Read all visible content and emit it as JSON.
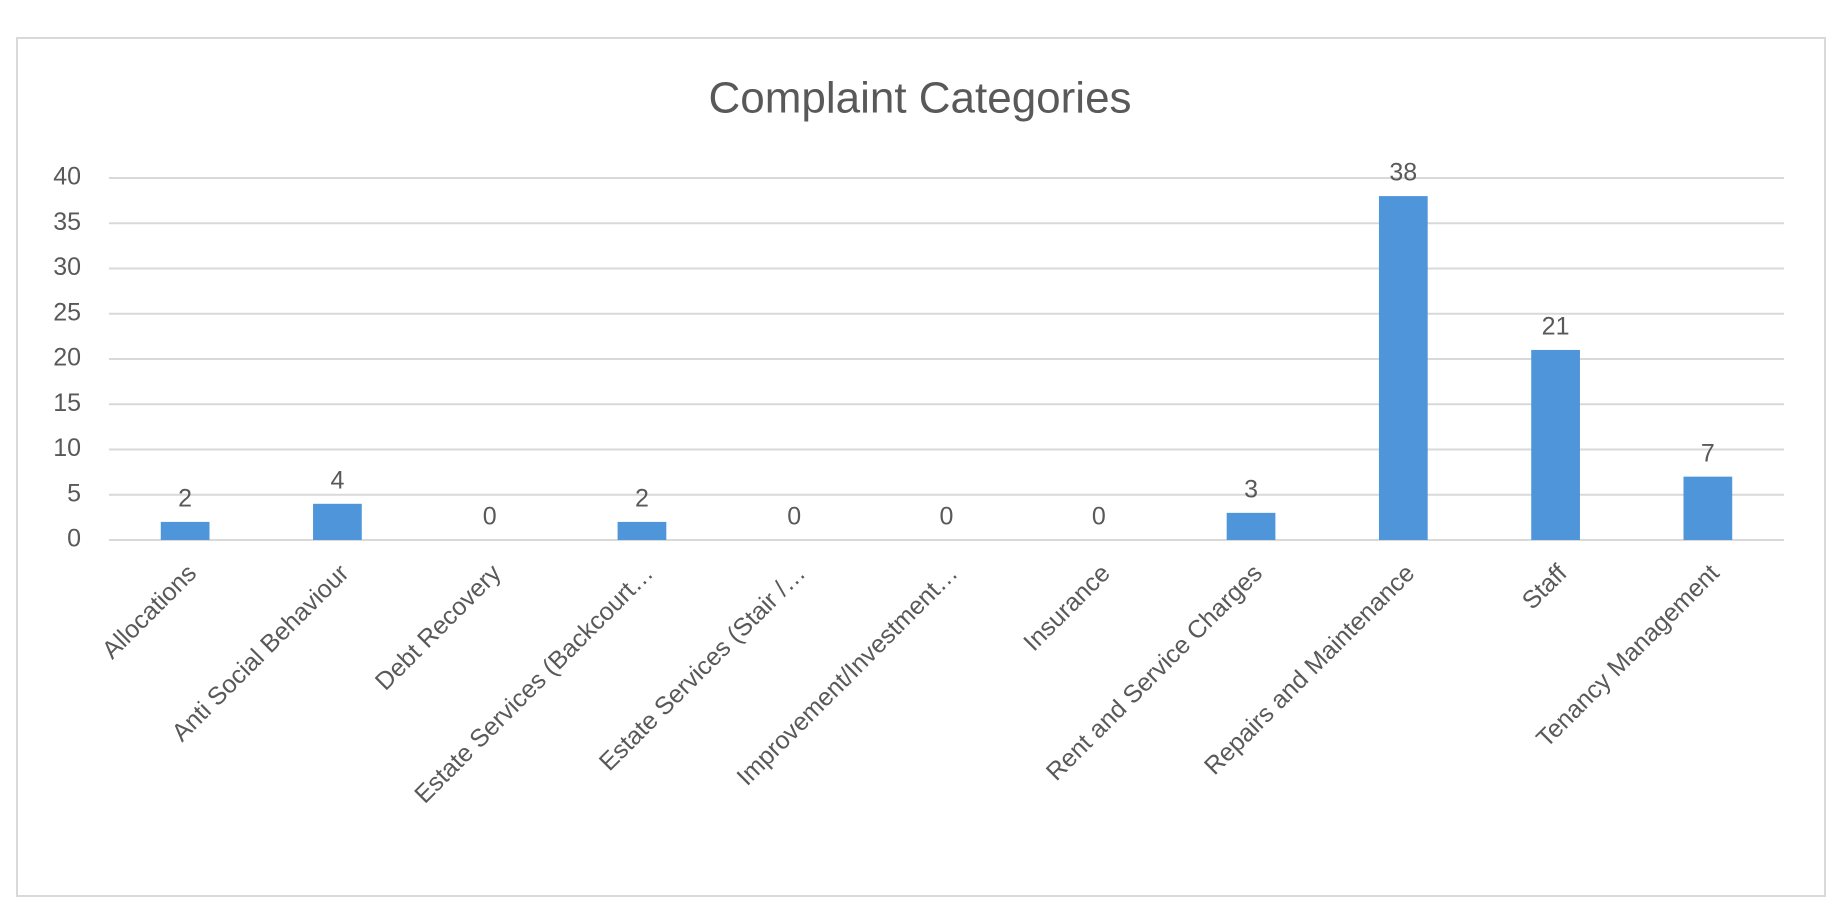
{
  "chart_data": {
    "type": "bar",
    "title": "Complaint Categories",
    "categories": [
      "Allocations",
      "Anti Social Behaviour",
      "Debt Recovery",
      "Estate Services (Backcourt…",
      "Estate Services (Stair  /…",
      "Improvement/Investment…",
      "Insurance",
      "Rent and Service Charges",
      "Repairs and Maintenance",
      "Staff",
      "Tenancy Management"
    ],
    "values": [
      2,
      4,
      0,
      2,
      0,
      0,
      0,
      3,
      38,
      21,
      7
    ],
    "color": "#4e95d9",
    "ylim": [
      0,
      40
    ],
    "yticks": [
      0,
      5,
      10,
      15,
      20,
      25,
      30,
      35,
      40
    ],
    "grid": true
  }
}
